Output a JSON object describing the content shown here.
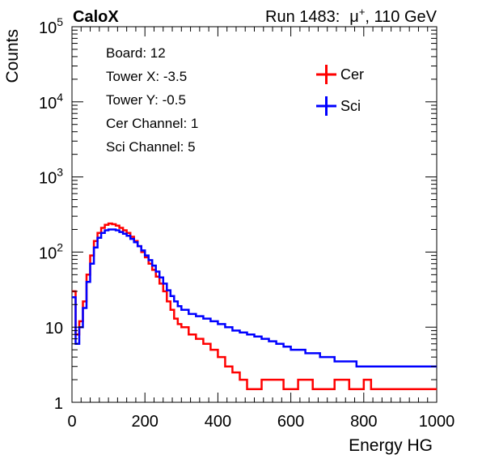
{
  "header": {
    "experiment": "CaloX",
    "run_info": "Run 1483:",
    "particle": "μ",
    "particle_charge": "+",
    "energy": ", 110 GeV"
  },
  "info_box": {
    "lines": [
      "Board: 12",
      "Tower X: -3.5",
      "Tower Y: -0.5",
      "Cer Channel: 1",
      "Sci Channel: 5"
    ]
  },
  "chart_data": {
    "type": "line",
    "xlabel": "Energy HG",
    "ylabel": "Counts",
    "xlim": [
      0,
      1000
    ],
    "ylim": [
      1,
      100000
    ],
    "ylog": true,
    "x_ticks": [
      0,
      200,
      400,
      600,
      800,
      1000
    ],
    "x_tick_labels": [
      "0",
      "200",
      "400",
      "600",
      "800",
      "1000"
    ],
    "y_ticks": [
      1,
      10,
      100,
      1000,
      10000,
      100000
    ],
    "y_tick_labels": [
      {
        "base": "1",
        "exp": ""
      },
      {
        "base": "10",
        "exp": ""
      },
      {
        "base": "10",
        "exp": "2"
      },
      {
        "base": "10",
        "exp": "3"
      },
      {
        "base": "10",
        "exp": "4"
      },
      {
        "base": "10",
        "exp": "5"
      }
    ],
    "legend_position": "top-right",
    "x": [
      0,
      10,
      20,
      30,
      40,
      50,
      60,
      70,
      80,
      90,
      100,
      110,
      120,
      130,
      140,
      150,
      160,
      170,
      180,
      190,
      200,
      210,
      220,
      230,
      240,
      250,
      260,
      270,
      280,
      290,
      300,
      320,
      340,
      360,
      380,
      400,
      420,
      440,
      460,
      480,
      500,
      520,
      540,
      560,
      580,
      600,
      620,
      640,
      660,
      680,
      700,
      720,
      740,
      760,
      780,
      800,
      820,
      840,
      860,
      880,
      900,
      920,
      940,
      960,
      980,
      1000
    ],
    "series": [
      {
        "name": "Cer",
        "color": "#ff0000",
        "values": [
          30,
          8,
          12,
          22,
          50,
          90,
          140,
          180,
          210,
          230,
          240,
          235,
          225,
          210,
          195,
          180,
          160,
          140,
          120,
          100,
          85,
          70,
          58,
          47,
          38,
          30,
          22,
          17,
          13,
          11,
          10,
          8,
          7,
          6,
          5,
          4,
          3,
          2.5,
          2,
          1.5,
          1.5,
          2,
          2,
          2,
          1.5,
          1.5,
          2,
          2,
          1.5,
          1.5,
          1.5,
          2,
          2,
          1.5,
          1.5,
          2,
          1.5,
          1.5,
          1.5,
          1.5,
          1.5,
          1.5,
          1.5,
          1.5,
          1.5,
          1.5
        ]
      },
      {
        "name": "Sci",
        "color": "#0000ff",
        "values": [
          25,
          6,
          10,
          18,
          40,
          70,
          115,
          155,
          180,
          195,
          200,
          200,
          195,
          185,
          175,
          165,
          150,
          135,
          120,
          105,
          90,
          78,
          66,
          55,
          46,
          38,
          31,
          26,
          22,
          19,
          17,
          15,
          14,
          13,
          12,
          11,
          10,
          9,
          8.5,
          8,
          7.5,
          7,
          6.5,
          6,
          5.5,
          5,
          5,
          4.5,
          4.5,
          4,
          4,
          3.5,
          3.5,
          3.5,
          3,
          3,
          3,
          3,
          3,
          3,
          3,
          3,
          3,
          3,
          3,
          3
        ]
      }
    ]
  }
}
